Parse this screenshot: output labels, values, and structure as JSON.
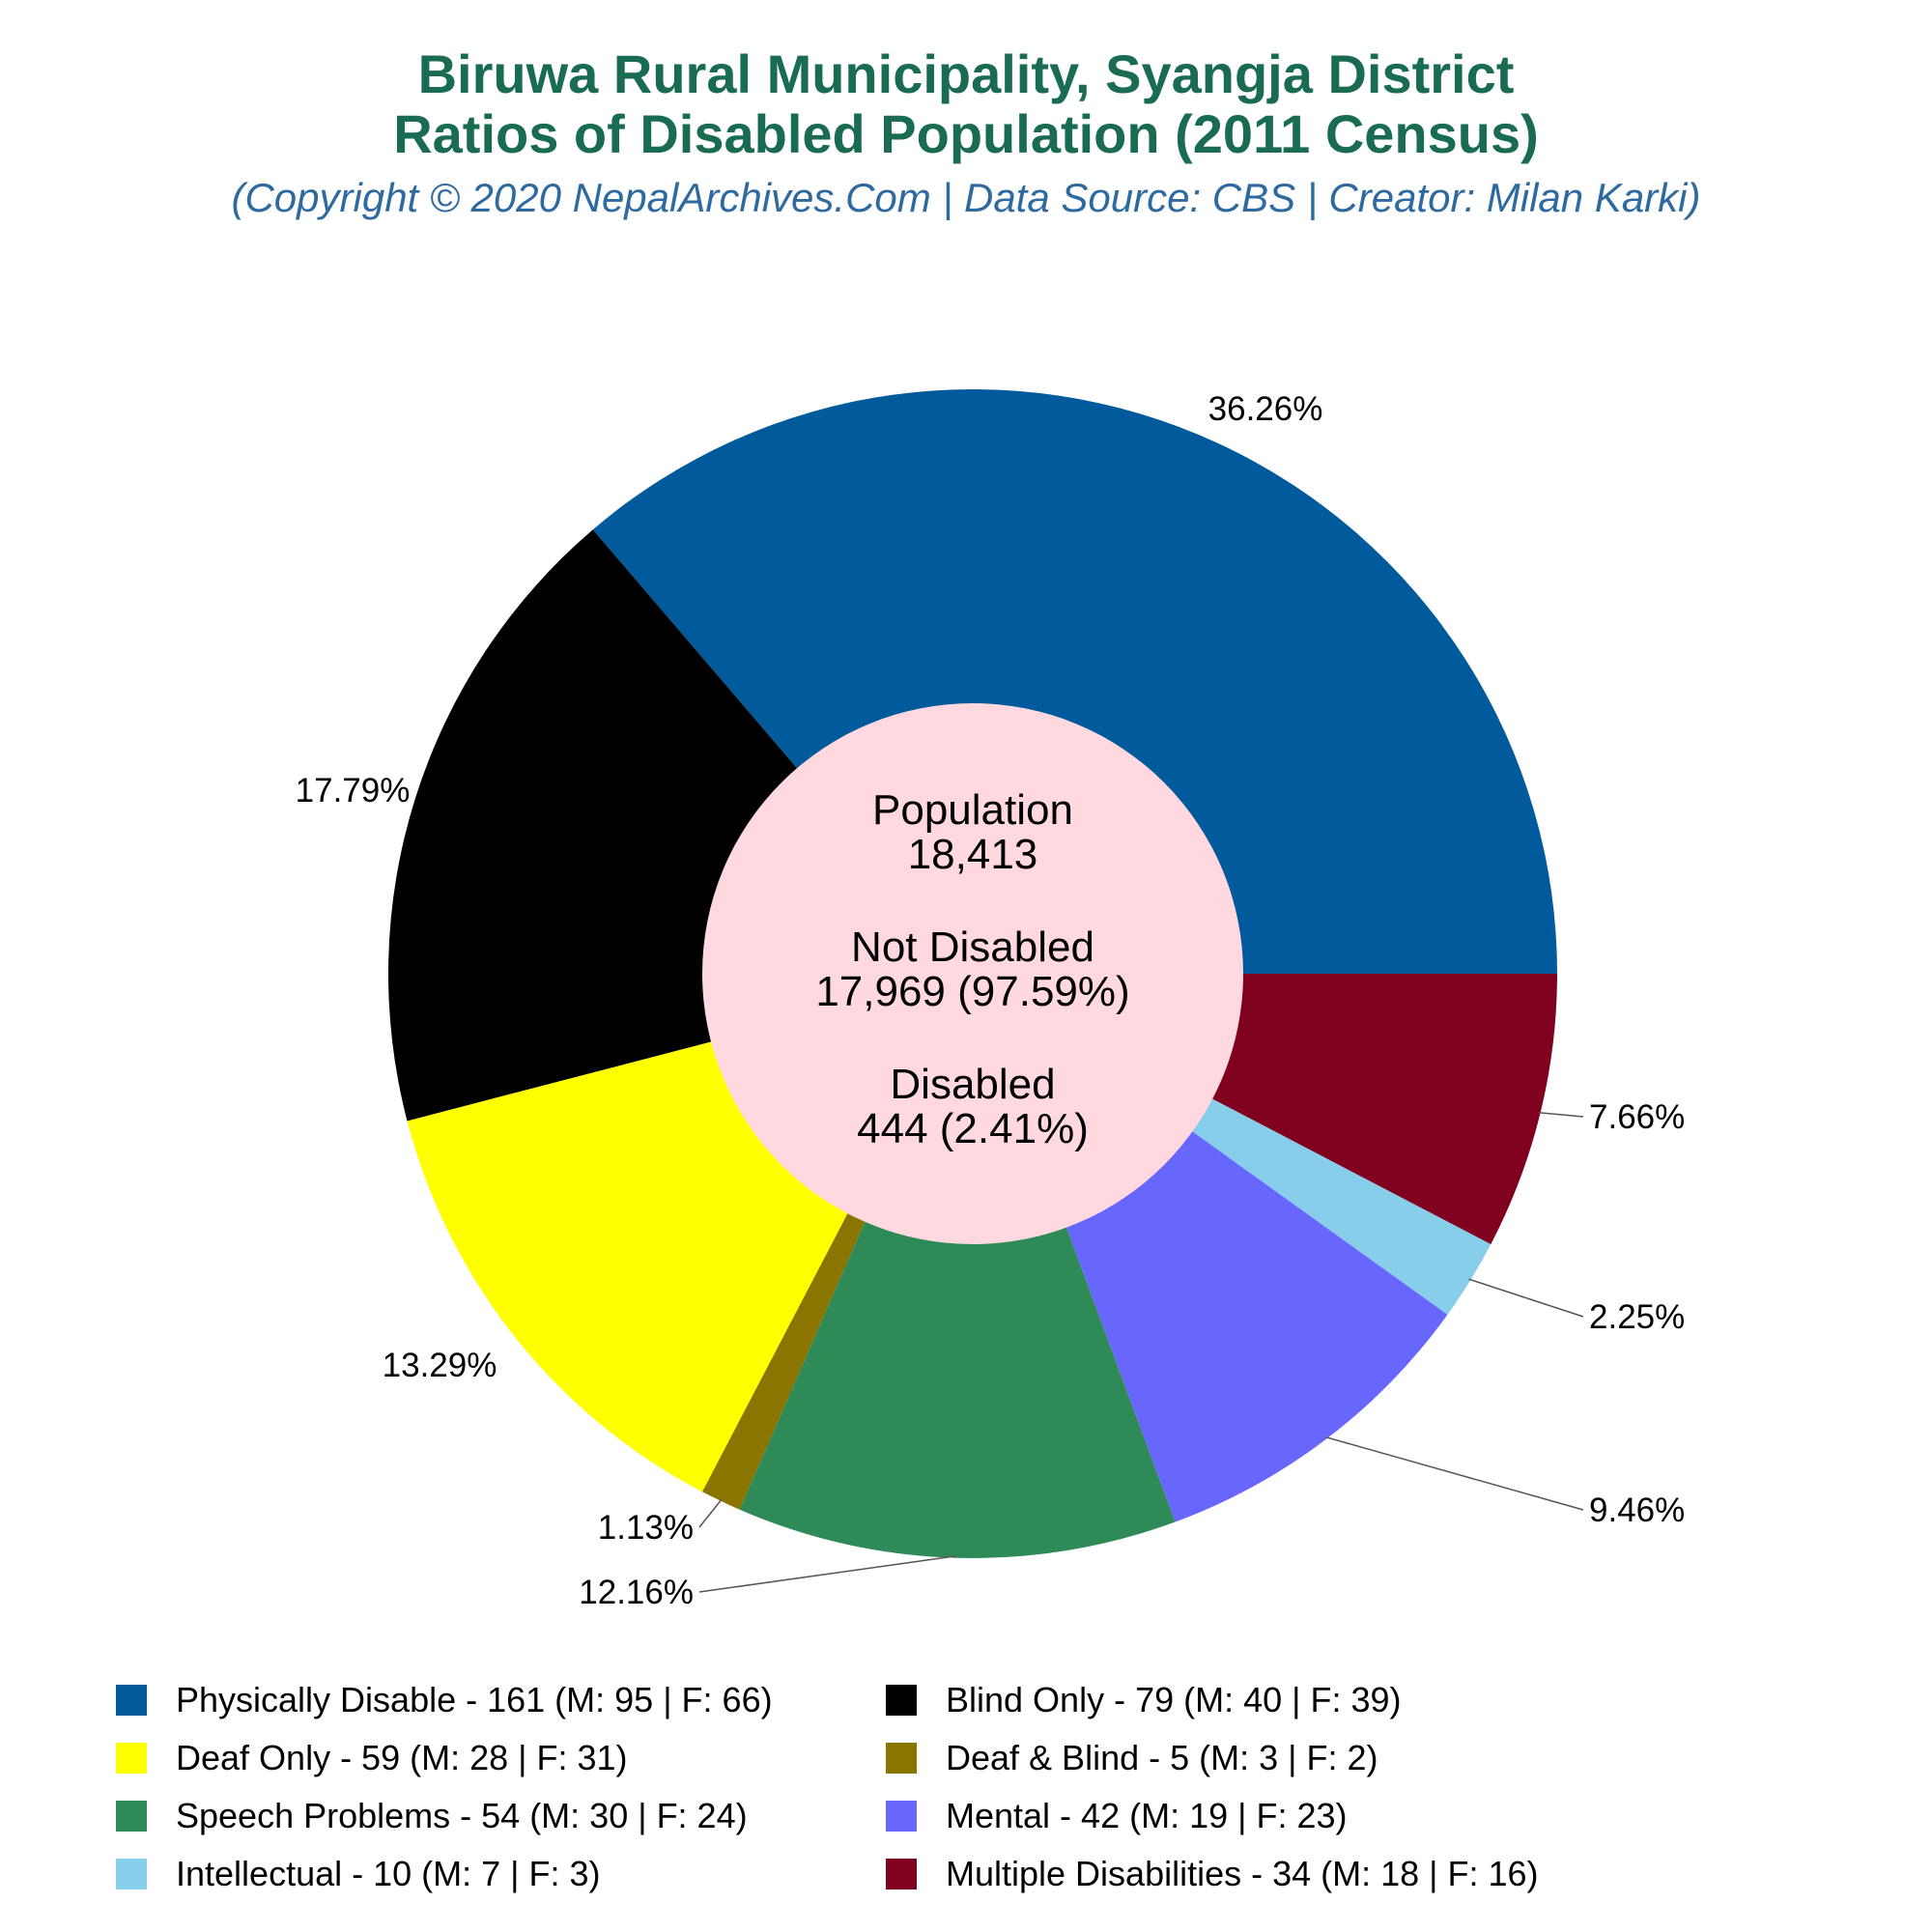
{
  "title_line1": "Biruwa Rural Municipality, Syangja District",
  "title_line2": "Ratios of Disabled Population (2011 Census)",
  "subtitle": "(Copyright © 2020 NepalArchives.Com | Data Source: CBS | Creator: Milan Karki)",
  "center": {
    "population_label": "Population",
    "population_value": "18,413",
    "not_disabled_label": "Not Disabled",
    "not_disabled_value": "17,969 (97.59%)",
    "disabled_label": "Disabled",
    "disabled_value": "444 (2.41%)",
    "bg_color": "#ffd9df"
  },
  "chart_data": {
    "type": "pie",
    "donut": true,
    "slices": [
      {
        "label": "Physically Disable - 161 (M: 95 | F: 66)",
        "value": 161,
        "percent": "36.26%",
        "color": "#015a9c"
      },
      {
        "label": "Blind Only - 79 (M: 40 | F: 39)",
        "value": 79,
        "percent": "17.79%",
        "color": "#000000"
      },
      {
        "label": "Deaf Only - 59 (M: 28 | F: 31)",
        "value": 59,
        "percent": "13.29%",
        "color": "#ffff00"
      },
      {
        "label": "Deaf & Blind - 5 (M: 3 | F: 2)",
        "value": 5,
        "percent": "1.13%",
        "color": "#8b7500"
      },
      {
        "label": "Speech Problems - 54 (M: 30 | F: 24)",
        "value": 54,
        "percent": "12.16%",
        "color": "#2e8b57"
      },
      {
        "label": "Mental - 42 (M: 19 | F: 23)",
        "value": 42,
        "percent": "9.46%",
        "color": "#6767fd"
      },
      {
        "label": "Intellectual - 10 (M: 7 | F: 3)",
        "value": 10,
        "percent": "2.25%",
        "color": "#87ceeb"
      },
      {
        "label": "Multiple Disabilities - 34 (M: 18 | F: 16)",
        "value": 34,
        "percent": "7.66%",
        "color": "#800020"
      }
    ],
    "start": "3 o'clock",
    "direction": "counter-clockwise",
    "legend_position": "bottom"
  }
}
